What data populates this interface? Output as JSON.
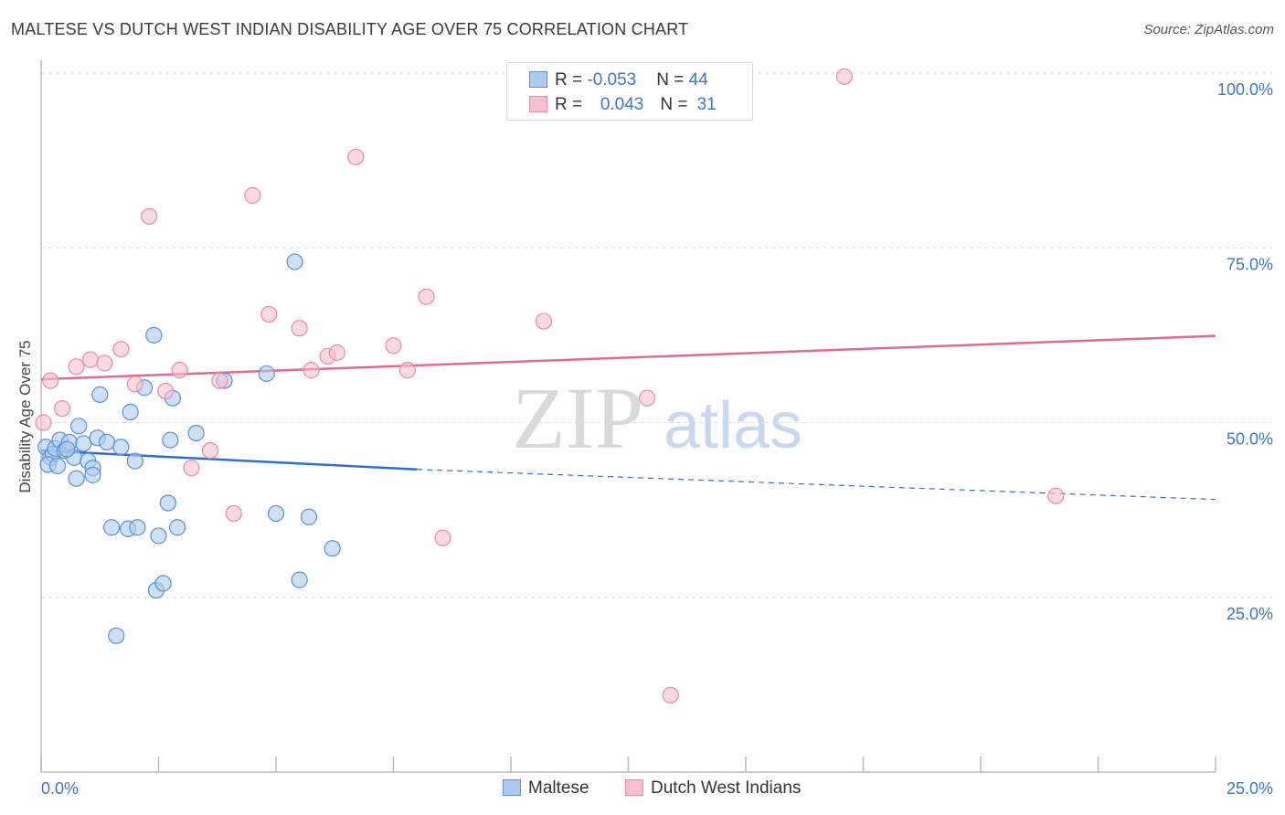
{
  "title": "MALTESE VS DUTCH WEST INDIAN DISABILITY AGE OVER 75 CORRELATION CHART",
  "source": "Source: ZipAtlas.com",
  "watermark": {
    "part1": "ZIP",
    "part2": "atlas"
  },
  "legend": {
    "rows": [
      {
        "r_label": "R = ",
        "r_value": "-0.053",
        "n_label": "N = ",
        "n_value": "44"
      },
      {
        "r_label": "R = ",
        "r_value": "0.043",
        "n_label": "N = ",
        "n_value": "31"
      }
    ]
  },
  "bottom_legend": {
    "maltese": "Maltese",
    "dutch": "Dutch West Indians"
  },
  "colors": {
    "maltese_fill": "#aecbef",
    "maltese_stroke": "#5b8fd6",
    "maltese_line": "#2f6fcc",
    "dutch_fill": "#f7c0d0",
    "dutch_stroke": "#e88aa8",
    "dutch_line": "#e06a90",
    "tick_label": "#3b78c4",
    "grid": "#dcdcdc"
  },
  "chart_data": {
    "type": "scatter",
    "title": "MALTESE VS DUTCH WEST INDIAN DISABILITY AGE OVER 75 CORRELATION CHART",
    "xlabel": "",
    "ylabel": "Disability Age Over 75",
    "xlim": [
      0,
      25
    ],
    "ylim": [
      0,
      100
    ],
    "x_tick_labels": [
      "0.0%",
      "25.0%"
    ],
    "y_tick_labels": [
      "25.0%",
      "50.0%",
      "75.0%",
      "100.0%"
    ],
    "y_ticks": [
      25,
      50,
      75,
      100
    ],
    "grid": true,
    "series": [
      {
        "name": "Maltese",
        "r": -0.053,
        "n": 44,
        "trend": {
          "x0": 0,
          "y0": 46.0,
          "x1": 8.0,
          "y1": 43.3,
          "dash_x1": 25,
          "dash_y1": 39.0
        },
        "points": [
          [
            0.1,
            46.5
          ],
          [
            0.2,
            45.0
          ],
          [
            0.25,
            45.5
          ],
          [
            0.3,
            46.3
          ],
          [
            0.4,
            47.5
          ],
          [
            0.5,
            46.0
          ],
          [
            0.6,
            47.2
          ],
          [
            0.7,
            45.0
          ],
          [
            0.8,
            49.5
          ],
          [
            0.9,
            47.0
          ],
          [
            1.0,
            44.5
          ],
          [
            0.75,
            42.0
          ],
          [
            1.1,
            43.5
          ],
          [
            1.2,
            47.8
          ],
          [
            1.25,
            54.0
          ],
          [
            1.4,
            47.2
          ],
          [
            1.5,
            35.0
          ],
          [
            1.7,
            46.5
          ],
          [
            1.85,
            34.8
          ],
          [
            1.9,
            51.5
          ],
          [
            2.0,
            44.5
          ],
          [
            2.05,
            35.0
          ],
          [
            2.2,
            55.0
          ],
          [
            2.4,
            62.5
          ],
          [
            2.45,
            26.0
          ],
          [
            2.5,
            33.8
          ],
          [
            2.6,
            27.0
          ],
          [
            2.7,
            38.5
          ],
          [
            2.75,
            47.5
          ],
          [
            2.8,
            53.5
          ],
          [
            2.9,
            35.0
          ],
          [
            3.3,
            48.5
          ],
          [
            3.9,
            56.0
          ],
          [
            4.8,
            57.0
          ],
          [
            5.0,
            37.0
          ],
          [
            5.4,
            73.0
          ],
          [
            5.5,
            27.5
          ],
          [
            5.7,
            36.5
          ],
          [
            6.2,
            32.0
          ],
          [
            1.6,
            19.5
          ],
          [
            0.15,
            44.0
          ],
          [
            0.55,
            46.2
          ],
          [
            1.1,
            42.5
          ],
          [
            0.35,
            43.8
          ]
        ]
      },
      {
        "name": "Dutch West Indians",
        "r": 0.043,
        "n": 31,
        "trend": {
          "x0": 0,
          "y0": 56.2,
          "x1": 25,
          "y1": 62.4
        },
        "points": [
          [
            0.05,
            50.0
          ],
          [
            0.45,
            52.0
          ],
          [
            0.75,
            58.0
          ],
          [
            1.05,
            59.0
          ],
          [
            1.35,
            58.5
          ],
          [
            1.7,
            60.5
          ],
          [
            2.0,
            55.5
          ],
          [
            2.3,
            79.5
          ],
          [
            2.65,
            54.5
          ],
          [
            2.95,
            57.5
          ],
          [
            3.2,
            43.5
          ],
          [
            3.6,
            46.0
          ],
          [
            3.8,
            56.0
          ],
          [
            4.1,
            37.0
          ],
          [
            4.5,
            82.5
          ],
          [
            4.85,
            65.5
          ],
          [
            5.5,
            63.5
          ],
          [
            5.75,
            57.5
          ],
          [
            6.1,
            59.5
          ],
          [
            6.3,
            60.0
          ],
          [
            6.7,
            88.0
          ],
          [
            7.5,
            61.0
          ],
          [
            7.8,
            57.5
          ],
          [
            8.2,
            68.0
          ],
          [
            8.55,
            33.5
          ],
          [
            10.7,
            64.5
          ],
          [
            12.9,
            53.5
          ],
          [
            13.4,
            11.0
          ],
          [
            17.1,
            99.5
          ],
          [
            21.6,
            39.5
          ],
          [
            0.2,
            56.0
          ]
        ]
      }
    ]
  }
}
